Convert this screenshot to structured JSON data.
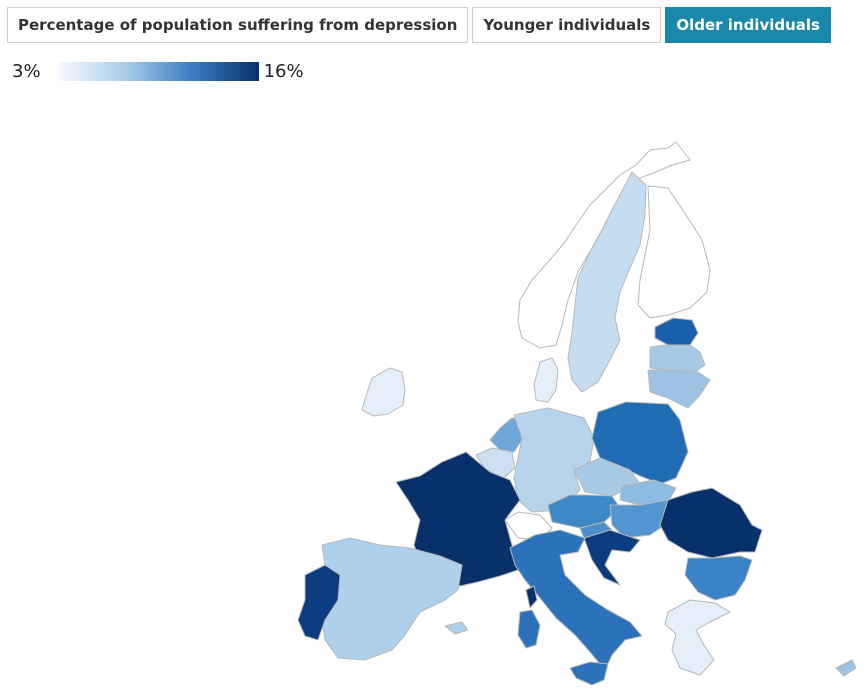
{
  "tabs": [
    {
      "label": "Percentage of population suffering from depression",
      "active": false
    },
    {
      "label": "Younger individuals",
      "active": false
    },
    {
      "label": "Older individuals",
      "active": true
    }
  ],
  "legend": {
    "min_label": "3%",
    "max_label": "16%",
    "colors": [
      "#f4f9ff",
      "#a9cde9",
      "#3b7dc3",
      "#08306b"
    ]
  },
  "regions": [
    {
      "name": "Norway",
      "color": "#ffffff"
    },
    {
      "name": "Sweden",
      "color": "#c6dcef"
    },
    {
      "name": "Finland",
      "color": "#ffffff"
    },
    {
      "name": "Estonia",
      "color": "#1a5fa9"
    },
    {
      "name": "Latvia",
      "color": "#a6c9e6"
    },
    {
      "name": "Lithuania",
      "color": "#9cc3e4"
    },
    {
      "name": "Ireland",
      "color": "#e4eff9"
    },
    {
      "name": "Denmark",
      "color": "#e4eff9"
    },
    {
      "name": "Netherlands",
      "color": "#6ea6d8"
    },
    {
      "name": "Belgium",
      "color": "#cde0f1"
    },
    {
      "name": "Germany",
      "color": "#b7d4ec"
    },
    {
      "name": "Poland",
      "color": "#1f6cb5"
    },
    {
      "name": "France",
      "color": "#08306b"
    },
    {
      "name": "Switzerland",
      "color": "#ffffff"
    },
    {
      "name": "Austria",
      "color": "#3d89c8"
    },
    {
      "name": "Czechia",
      "color": "#a6c9e6"
    },
    {
      "name": "Slovakia",
      "color": "#8dbbe2"
    },
    {
      "name": "Hungary",
      "color": "#5196d0"
    },
    {
      "name": "Slovenia",
      "color": "#4a8fcc"
    },
    {
      "name": "Croatia",
      "color": "#0b3c7f"
    },
    {
      "name": "Romania",
      "color": "#08306b"
    },
    {
      "name": "Bulgaria",
      "color": "#3b83c7"
    },
    {
      "name": "Greece",
      "color": "#e4eff9"
    },
    {
      "name": "Italy",
      "color": "#2b72bb"
    },
    {
      "name": "Sardinia",
      "color": "#2b72bb"
    },
    {
      "name": "Sicily",
      "color": "#2b72bb"
    },
    {
      "name": "Corsica",
      "color": "#08306b"
    },
    {
      "name": "Spain",
      "color": "#aed0ea"
    },
    {
      "name": "Portugal",
      "color": "#0b3c7f"
    },
    {
      "name": "Mallorca",
      "color": "#aed0ea"
    },
    {
      "name": "Cyprus",
      "color": "#9cc3e4"
    }
  ]
}
